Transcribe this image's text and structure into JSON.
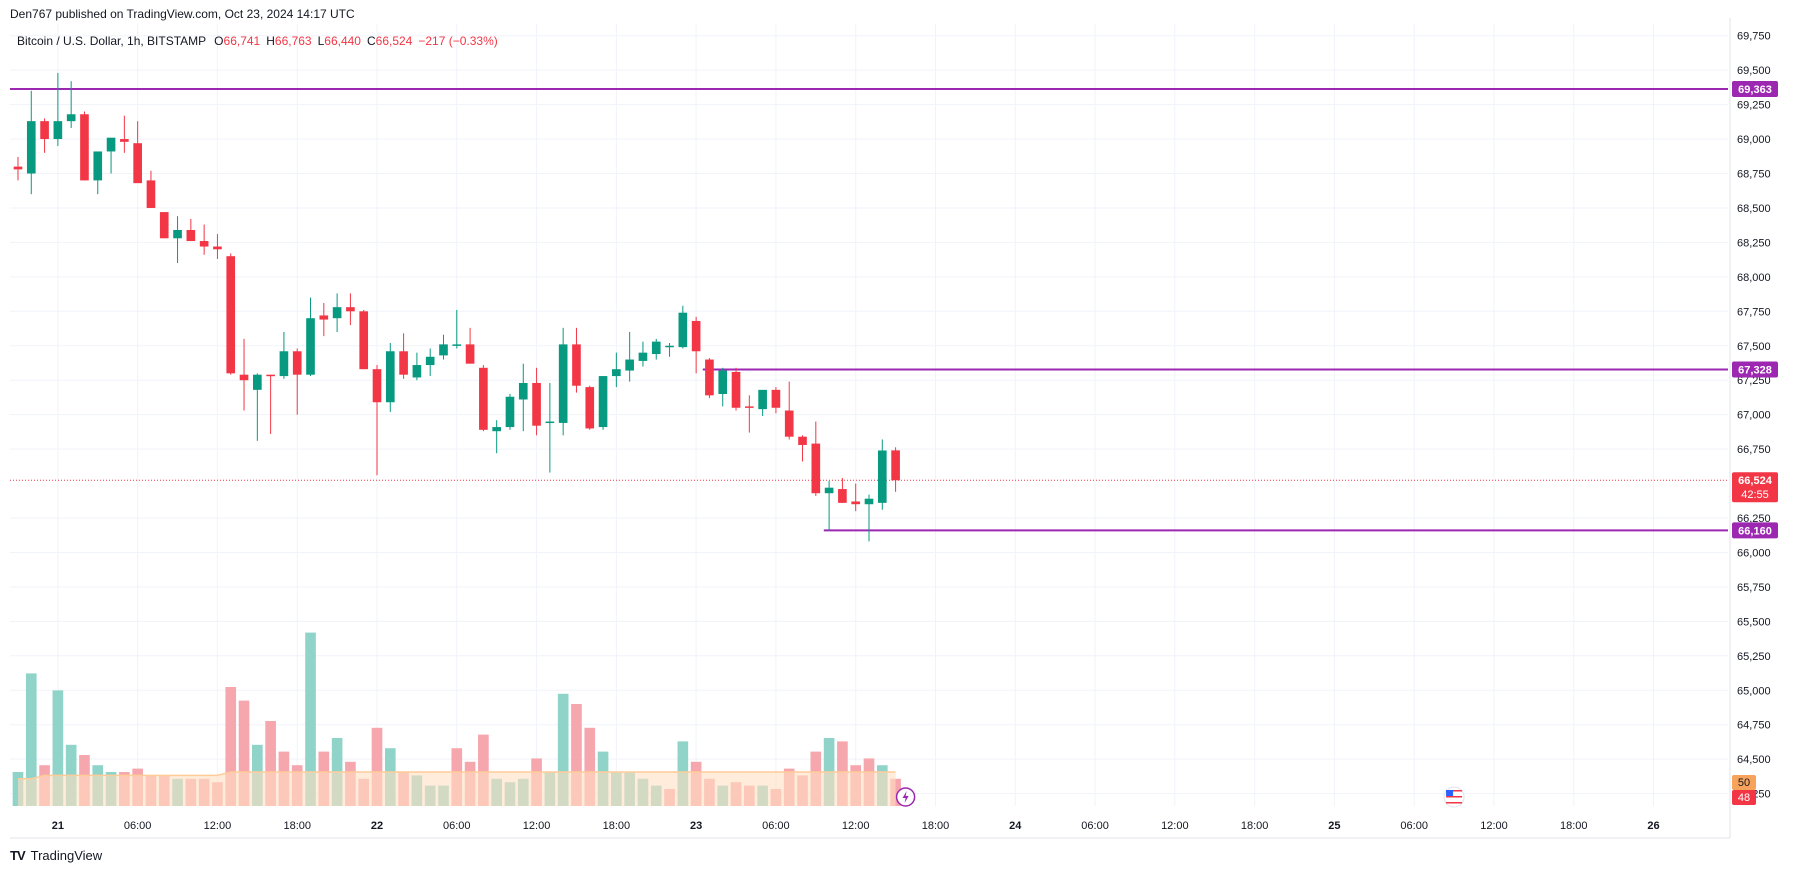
{
  "published_line": "Den767 published on TradingView.com, Oct 23, 2024 14:17 UTC",
  "footer": {
    "logo_mark": "TV",
    "brand": "TradingView"
  },
  "chart_data": {
    "type": "candlestick",
    "symbol_title": "Bitcoin / U.S. Dollar, 1h, BITSTAMP",
    "ohlc_labels": {
      "o_label": "O",
      "o": "66,741",
      "h_label": "H",
      "h": "66,763",
      "l_label": "L",
      "l": "66,440",
      "c_label": "C",
      "c": "66,524",
      "change": "−217 (−0.33%)"
    },
    "y_ticks": [
      {
        "v": 69750,
        "t": "69,750"
      },
      {
        "v": 69500,
        "t": "69,500"
      },
      {
        "v": 69250,
        "t": "69,250"
      },
      {
        "v": 69000,
        "t": "69,000"
      },
      {
        "v": 68750,
        "t": "68,750"
      },
      {
        "v": 68500,
        "t": "68,500"
      },
      {
        "v": 68250,
        "t": "68,250"
      },
      {
        "v": 68000,
        "t": "68,000"
      },
      {
        "v": 67750,
        "t": "67,750"
      },
      {
        "v": 67500,
        "t": "67,500"
      },
      {
        "v": 67250,
        "t": "67,250"
      },
      {
        "v": 67000,
        "t": "67,000"
      },
      {
        "v": 66750,
        "t": "66,750"
      },
      {
        "v": 66250,
        "t": "66,250"
      },
      {
        "v": 66000,
        "t": "66,000"
      },
      {
        "v": 65750,
        "t": "65,750"
      },
      {
        "v": 65500,
        "t": "65,500"
      },
      {
        "v": 65250,
        "t": "65,250"
      },
      {
        "v": 65000,
        "t": "65,000"
      },
      {
        "v": 64750,
        "t": "64,750"
      },
      {
        "v": 64500,
        "t": "64,500"
      },
      {
        "v": 64250,
        "t": "64,250"
      }
    ],
    "ylim": [
      64160,
      69835
    ],
    "x_ticks": [
      {
        "i": 3,
        "t": "21",
        "bold": true
      },
      {
        "i": 9,
        "t": "06:00"
      },
      {
        "i": 15,
        "t": "12:00"
      },
      {
        "i": 21,
        "t": "18:00"
      },
      {
        "i": 27,
        "t": "22",
        "bold": true
      },
      {
        "i": 33,
        "t": "06:00"
      },
      {
        "i": 39,
        "t": "12:00"
      },
      {
        "i": 45,
        "t": "18:00"
      },
      {
        "i": 51,
        "t": "23",
        "bold": true
      },
      {
        "i": 57,
        "t": "06:00"
      },
      {
        "i": 63,
        "t": "12:00"
      },
      {
        "i": 69,
        "t": "18:00"
      },
      {
        "i": 75,
        "t": "24",
        "bold": true
      },
      {
        "i": 81,
        "t": "06:00"
      },
      {
        "i": 87,
        "t": "12:00"
      },
      {
        "i": 93,
        "t": "18:00"
      },
      {
        "i": 99,
        "t": "25",
        "bold": true
      },
      {
        "i": 105,
        "t": "06:00"
      },
      {
        "i": 111,
        "t": "12:00"
      },
      {
        "i": 117,
        "t": "18:00"
      },
      {
        "i": 123,
        "t": "26",
        "bold": true
      }
    ],
    "x_range": [
      -0.6,
      128.6
    ],
    "candles": [
      {
        "o": 68800,
        "h": 68870,
        "l": 68700,
        "c": 68780
      },
      {
        "o": 68750,
        "h": 69350,
        "l": 68600,
        "c": 69130
      },
      {
        "o": 69130,
        "h": 69150,
        "l": 68900,
        "c": 69000
      },
      {
        "o": 69000,
        "h": 69480,
        "l": 68950,
        "c": 69130
      },
      {
        "o": 69130,
        "h": 69420,
        "l": 69080,
        "c": 69180
      },
      {
        "o": 69180,
        "h": 69200,
        "l": 68700,
        "c": 68700
      },
      {
        "o": 68700,
        "h": 68900,
        "l": 68600,
        "c": 68910
      },
      {
        "o": 68910,
        "h": 69000,
        "l": 68750,
        "c": 69010
      },
      {
        "o": 69000,
        "h": 69170,
        "l": 68900,
        "c": 68980
      },
      {
        "o": 68970,
        "h": 69130,
        "l": 68700,
        "c": 68680
      },
      {
        "o": 68700,
        "h": 68770,
        "l": 68500,
        "c": 68500
      },
      {
        "o": 68470,
        "h": 68470,
        "l": 68280,
        "c": 68280
      },
      {
        "o": 68280,
        "h": 68440,
        "l": 68100,
        "c": 68340
      },
      {
        "o": 68340,
        "h": 68420,
        "l": 68260,
        "c": 68260
      },
      {
        "o": 68260,
        "h": 68380,
        "l": 68160,
        "c": 68220
      },
      {
        "o": 68220,
        "h": 68310,
        "l": 68130,
        "c": 68200
      },
      {
        "o": 68150,
        "h": 68170,
        "l": 67290,
        "c": 67300
      },
      {
        "o": 67290,
        "h": 67550,
        "l": 67030,
        "c": 67250
      },
      {
        "o": 67180,
        "h": 67300,
        "l": 66810,
        "c": 67290
      },
      {
        "o": 67290,
        "h": 67290,
        "l": 66860,
        "c": 67280
      },
      {
        "o": 67280,
        "h": 67600,
        "l": 67260,
        "c": 67460
      },
      {
        "o": 67460,
        "h": 67480,
        "l": 67000,
        "c": 67290
      },
      {
        "o": 67290,
        "h": 67850,
        "l": 67280,
        "c": 67700
      },
      {
        "o": 67720,
        "h": 67810,
        "l": 67570,
        "c": 67690
      },
      {
        "o": 67700,
        "h": 67880,
        "l": 67600,
        "c": 67780
      },
      {
        "o": 67780,
        "h": 67880,
        "l": 67650,
        "c": 67750
      },
      {
        "o": 67750,
        "h": 67760,
        "l": 67330,
        "c": 67330
      },
      {
        "o": 67330,
        "h": 67360,
        "l": 66560,
        "c": 67090
      },
      {
        "o": 67090,
        "h": 67520,
        "l": 67020,
        "c": 67460
      },
      {
        "o": 67460,
        "h": 67590,
        "l": 67260,
        "c": 67290
      },
      {
        "o": 67270,
        "h": 67450,
        "l": 67250,
        "c": 67360
      },
      {
        "o": 67360,
        "h": 67480,
        "l": 67280,
        "c": 67420
      },
      {
        "o": 67430,
        "h": 67580,
        "l": 67400,
        "c": 67510
      },
      {
        "o": 67510,
        "h": 67760,
        "l": 67480,
        "c": 67510
      },
      {
        "o": 67510,
        "h": 67630,
        "l": 67370,
        "c": 67370
      },
      {
        "o": 67340,
        "h": 67360,
        "l": 66880,
        "c": 66890
      },
      {
        "o": 66880,
        "h": 66960,
        "l": 66720,
        "c": 66910
      },
      {
        "o": 66910,
        "h": 67150,
        "l": 66890,
        "c": 67130
      },
      {
        "o": 67110,
        "h": 67370,
        "l": 66880,
        "c": 67230
      },
      {
        "o": 67230,
        "h": 67340,
        "l": 66850,
        "c": 66920
      },
      {
        "o": 66950,
        "h": 67230,
        "l": 66580,
        "c": 66950
      },
      {
        "o": 66940,
        "h": 67630,
        "l": 66850,
        "c": 67510
      },
      {
        "o": 67510,
        "h": 67630,
        "l": 67160,
        "c": 67210
      },
      {
        "o": 67200,
        "h": 67210,
        "l": 66890,
        "c": 66900
      },
      {
        "o": 66910,
        "h": 67280,
        "l": 66890,
        "c": 67280
      },
      {
        "o": 67280,
        "h": 67450,
        "l": 67200,
        "c": 67330
      },
      {
        "o": 67320,
        "h": 67600,
        "l": 67240,
        "c": 67400
      },
      {
        "o": 67390,
        "h": 67530,
        "l": 67350,
        "c": 67450
      },
      {
        "o": 67440,
        "h": 67550,
        "l": 67400,
        "c": 67530
      },
      {
        "o": 67500,
        "h": 67520,
        "l": 67420,
        "c": 67500
      },
      {
        "o": 67490,
        "h": 67790,
        "l": 67480,
        "c": 67740
      },
      {
        "o": 67680,
        "h": 67710,
        "l": 67300,
        "c": 67460
      },
      {
        "o": 67400,
        "h": 67410,
        "l": 67120,
        "c": 67140
      },
      {
        "o": 67150,
        "h": 67340,
        "l": 67060,
        "c": 67320
      },
      {
        "o": 67310,
        "h": 67340,
        "l": 67030,
        "c": 67050
      },
      {
        "o": 67060,
        "h": 67140,
        "l": 66870,
        "c": 67050
      },
      {
        "o": 67040,
        "h": 67170,
        "l": 66990,
        "c": 67180
      },
      {
        "o": 67180,
        "h": 67200,
        "l": 67010,
        "c": 67050
      },
      {
        "o": 67030,
        "h": 67240,
        "l": 66820,
        "c": 66840
      },
      {
        "o": 66840,
        "h": 66850,
        "l": 66660,
        "c": 66780
      },
      {
        "o": 66790,
        "h": 66950,
        "l": 66410,
        "c": 66430
      },
      {
        "o": 66430,
        "h": 66520,
        "l": 66160,
        "c": 66470
      },
      {
        "o": 66460,
        "h": 66540,
        "l": 66360,
        "c": 66360
      },
      {
        "o": 66370,
        "h": 66500,
        "l": 66300,
        "c": 66350
      },
      {
        "o": 66350,
        "h": 66420,
        "l": 66080,
        "c": 66390
      },
      {
        "o": 66360,
        "h": 66820,
        "l": 66310,
        "c": 66740
      },
      {
        "o": 66741,
        "h": 66763,
        "l": 66440,
        "c": 66524
      }
    ],
    "volume": [
      {
        "v": 1.0,
        "up": true
      },
      {
        "v": 3.9,
        "up": true
      },
      {
        "v": 1.2,
        "up": false
      },
      {
        "v": 3.4,
        "up": true
      },
      {
        "v": 1.8,
        "up": true
      },
      {
        "v": 1.5,
        "up": false
      },
      {
        "v": 1.2,
        "up": true
      },
      {
        "v": 1.0,
        "up": true
      },
      {
        "v": 1.0,
        "up": false
      },
      {
        "v": 1.1,
        "up": false
      },
      {
        "v": 0.9,
        "up": false
      },
      {
        "v": 0.9,
        "up": false
      },
      {
        "v": 0.8,
        "up": true
      },
      {
        "v": 0.8,
        "up": false
      },
      {
        "v": 0.8,
        "up": false
      },
      {
        "v": 0.7,
        "up": false
      },
      {
        "v": 3.5,
        "up": false
      },
      {
        "v": 3.1,
        "up": false
      },
      {
        "v": 1.8,
        "up": true
      },
      {
        "v": 2.5,
        "up": false
      },
      {
        "v": 1.6,
        "up": false
      },
      {
        "v": 1.2,
        "up": false
      },
      {
        "v": 5.1,
        "up": true
      },
      {
        "v": 1.6,
        "up": false
      },
      {
        "v": 2.0,
        "up": true
      },
      {
        "v": 1.3,
        "up": false
      },
      {
        "v": 0.8,
        "up": false
      },
      {
        "v": 2.3,
        "up": false
      },
      {
        "v": 1.7,
        "up": true
      },
      {
        "v": 1.0,
        "up": false
      },
      {
        "v": 0.9,
        "up": true
      },
      {
        "v": 0.6,
        "up": true
      },
      {
        "v": 0.6,
        "up": true
      },
      {
        "v": 1.7,
        "up": false
      },
      {
        "v": 1.3,
        "up": false
      },
      {
        "v": 2.1,
        "up": false
      },
      {
        "v": 0.8,
        "up": true
      },
      {
        "v": 0.7,
        "up": true
      },
      {
        "v": 0.8,
        "up": true
      },
      {
        "v": 1.4,
        "up": false
      },
      {
        "v": 1.0,
        "up": true
      },
      {
        "v": 3.3,
        "up": true
      },
      {
        "v": 3.0,
        "up": false
      },
      {
        "v": 2.3,
        "up": false
      },
      {
        "v": 1.6,
        "up": true
      },
      {
        "v": 1.0,
        "up": true
      },
      {
        "v": 1.0,
        "up": true
      },
      {
        "v": 0.8,
        "up": true
      },
      {
        "v": 0.6,
        "up": true
      },
      {
        "v": 0.5,
        "up": false
      },
      {
        "v": 1.9,
        "up": true
      },
      {
        "v": 1.3,
        "up": false
      },
      {
        "v": 0.8,
        "up": false
      },
      {
        "v": 0.6,
        "up": true
      },
      {
        "v": 0.7,
        "up": false
      },
      {
        "v": 0.6,
        "up": false
      },
      {
        "v": 0.6,
        "up": true
      },
      {
        "v": 0.5,
        "up": false
      },
      {
        "v": 1.1,
        "up": false
      },
      {
        "v": 0.9,
        "up": false
      },
      {
        "v": 1.6,
        "up": false
      },
      {
        "v": 2.0,
        "up": true
      },
      {
        "v": 1.9,
        "up": false
      },
      {
        "v": 1.2,
        "up": false
      },
      {
        "v": 1.4,
        "up": false
      },
      {
        "v": 1.2,
        "up": true
      },
      {
        "v": 0.8,
        "up": false
      }
    ],
    "volume_ma": [
      0.8,
      0.8,
      0.9,
      0.9,
      0.9,
      0.9,
      0.9,
      0.9,
      0.9,
      0.9,
      0.9,
      0.9,
      0.9,
      0.9,
      0.9,
      0.9,
      1.0,
      1.0,
      1.0,
      1.0,
      1.0,
      1.0,
      1.0,
      1.0,
      1.0,
      1.0,
      1.0,
      1.0,
      1.0,
      1.0,
      1.0,
      1.0,
      1.0,
      1.0,
      1.0,
      1.0,
      1.0,
      1.0,
      1.0,
      1.0,
      1.0,
      1.0,
      1.0,
      1.0,
      1.0,
      1.0,
      1.0,
      1.0,
      1.0,
      1.0,
      1.0,
      1.0,
      1.0,
      1.0,
      1.0,
      1.0,
      1.0,
      1.0,
      1.0,
      1.0,
      1.0,
      1.0,
      1.0,
      1.0,
      1.0,
      1.0,
      1.0
    ],
    "levels": [
      {
        "price": 69363,
        "label": "69,363",
        "start": -0.6
      },
      {
        "price": 67328,
        "label": "67,328",
        "start": 51.5
      },
      {
        "price": 66160,
        "label": "66,160",
        "start": 60.6
      }
    ],
    "last_price": {
      "price": 66524,
      "label": "66,524",
      "countdown": "42:55"
    },
    "volume_badges": {
      "green": "50",
      "red": "48"
    },
    "colors": {
      "up": "#089981",
      "down": "#f23645",
      "level": "#9c27b0",
      "vol_up": "#8fd3c9",
      "vol_down": "#f6a6ad",
      "vol_ma": "#ffcc99",
      "vol_ma_fill": "#ffe0c2",
      "grid": "#f0f3fa",
      "axis_text": "#131722",
      "badge_green": "#f7a35c",
      "badge_red": "#f23645"
    },
    "icons": [
      "lightning-icon",
      "us-flag-icon"
    ]
  }
}
